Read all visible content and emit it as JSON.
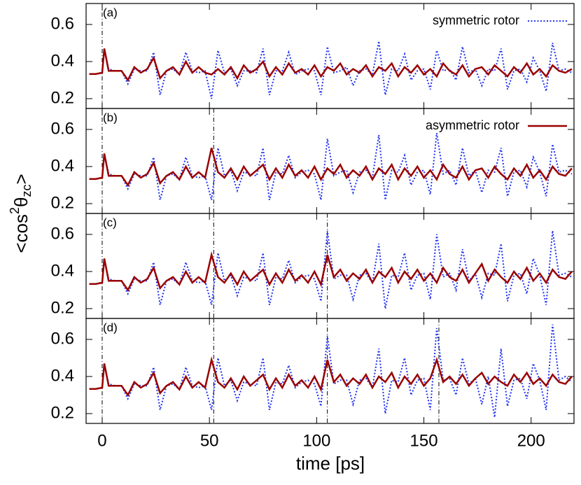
{
  "xlabel": "time [ps]",
  "ylabel": [
    "<cos",
    "2",
    "θ",
    "zc",
    ">"
  ],
  "xlim": [
    -7.5,
    220
  ],
  "xticks": [
    0,
    50,
    100,
    150,
    200
  ],
  "x": [
    -6,
    -3,
    0,
    1,
    3,
    6,
    9,
    12,
    15,
    18,
    21,
    24,
    27,
    30,
    33,
    36,
    39,
    42,
    45,
    48,
    51,
    54,
    57,
    60,
    63,
    66,
    69,
    72,
    75,
    78,
    81,
    84,
    87,
    90,
    93,
    96,
    99,
    102,
    105,
    108,
    111,
    114,
    117,
    120,
    123,
    126,
    129,
    132,
    135,
    138,
    141,
    144,
    147,
    150,
    153,
    156,
    159,
    162,
    165,
    168,
    171,
    174,
    177,
    180,
    183,
    186,
    189,
    192,
    195,
    198,
    201,
    204,
    207,
    210,
    213,
    216,
    219
  ],
  "chart_data": [
    {
      "type": "line",
      "label": "(a)",
      "ylim": [
        0.147,
        0.713
      ],
      "yticks": [
        0.2,
        0.4,
        0.6
      ],
      "vlines": [
        0
      ],
      "legend": "upper right",
      "series": [
        {
          "name": "symmetric rotor",
          "color": "#2233ee",
          "style": "dotted",
          "values": [
            0.333,
            0.333,
            0.34,
            0.47,
            0.36,
            0.35,
            0.35,
            0.28,
            0.36,
            0.35,
            0.35,
            0.45,
            0.22,
            0.35,
            0.36,
            0.33,
            0.45,
            0.35,
            0.34,
            0.35,
            0.2,
            0.46,
            0.34,
            0.36,
            0.27,
            0.35,
            0.35,
            0.34,
            0.47,
            0.22,
            0.35,
            0.35,
            0.45,
            0.33,
            0.35,
            0.36,
            0.35,
            0.22,
            0.48,
            0.34,
            0.35,
            0.37,
            0.27,
            0.35,
            0.36,
            0.33,
            0.51,
            0.22,
            0.36,
            0.35,
            0.44,
            0.3,
            0.35,
            0.36,
            0.25,
            0.46,
            0.35,
            0.36,
            0.3,
            0.48,
            0.34,
            0.36,
            0.27,
            0.36,
            0.35,
            0.47,
            0.25,
            0.35,
            0.36,
            0.29,
            0.42,
            0.35,
            0.24,
            0.5,
            0.35,
            0.36,
            0.34
          ]
        },
        {
          "color": "#990000",
          "style": "solid",
          "values": [
            0.333,
            0.333,
            0.34,
            0.47,
            0.35,
            0.35,
            0.35,
            0.3,
            0.37,
            0.34,
            0.36,
            0.42,
            0.31,
            0.35,
            0.37,
            0.33,
            0.4,
            0.34,
            0.37,
            0.34,
            0.33,
            0.36,
            0.33,
            0.37,
            0.31,
            0.38,
            0.34,
            0.36,
            0.4,
            0.32,
            0.37,
            0.33,
            0.39,
            0.34,
            0.36,
            0.33,
            0.38,
            0.32,
            0.37,
            0.35,
            0.39,
            0.33,
            0.36,
            0.34,
            0.38,
            0.32,
            0.37,
            0.35,
            0.39,
            0.32,
            0.37,
            0.34,
            0.38,
            0.33,
            0.36,
            0.32,
            0.39,
            0.35,
            0.33,
            0.38,
            0.32,
            0.36,
            0.37,
            0.33,
            0.38,
            0.35,
            0.32,
            0.37,
            0.34,
            0.39,
            0.33,
            0.36,
            0.32,
            0.38,
            0.35,
            0.34,
            0.36
          ]
        }
      ]
    },
    {
      "type": "line",
      "label": "(b)",
      "ylim": [
        0.147,
        0.713
      ],
      "yticks": [
        0.2,
        0.4,
        0.6
      ],
      "vlines": [
        0,
        52
      ],
      "legend": "upper right",
      "series": [
        {
          "color": "#2233ee",
          "style": "dotted",
          "values": [
            0.333,
            0.333,
            0.34,
            0.47,
            0.36,
            0.35,
            0.35,
            0.28,
            0.36,
            0.35,
            0.35,
            0.45,
            0.22,
            0.35,
            0.36,
            0.33,
            0.45,
            0.35,
            0.34,
            0.35,
            0.22,
            0.5,
            0.35,
            0.38,
            0.27,
            0.37,
            0.36,
            0.35,
            0.5,
            0.22,
            0.37,
            0.36,
            0.46,
            0.34,
            0.37,
            0.38,
            0.36,
            0.22,
            0.55,
            0.35,
            0.37,
            0.38,
            0.26,
            0.37,
            0.38,
            0.34,
            0.57,
            0.22,
            0.38,
            0.37,
            0.46,
            0.3,
            0.37,
            0.38,
            0.25,
            0.58,
            0.36,
            0.38,
            0.3,
            0.5,
            0.35,
            0.38,
            0.26,
            0.38,
            0.37,
            0.5,
            0.24,
            0.37,
            0.38,
            0.29,
            0.45,
            0.37,
            0.24,
            0.52,
            0.37,
            0.38,
            0.36
          ]
        },
        {
          "name": "asymmetric rotor",
          "color": "#990000",
          "style": "solid",
          "values": [
            0.333,
            0.333,
            0.34,
            0.47,
            0.35,
            0.35,
            0.35,
            0.3,
            0.37,
            0.34,
            0.36,
            0.42,
            0.31,
            0.35,
            0.37,
            0.33,
            0.4,
            0.34,
            0.37,
            0.34,
            0.5,
            0.37,
            0.34,
            0.39,
            0.33,
            0.4,
            0.35,
            0.38,
            0.41,
            0.33,
            0.39,
            0.34,
            0.41,
            0.35,
            0.38,
            0.34,
            0.4,
            0.33,
            0.39,
            0.36,
            0.41,
            0.34,
            0.38,
            0.35,
            0.4,
            0.33,
            0.39,
            0.36,
            0.41,
            0.33,
            0.39,
            0.35,
            0.4,
            0.34,
            0.38,
            0.33,
            0.41,
            0.36,
            0.34,
            0.4,
            0.33,
            0.38,
            0.39,
            0.34,
            0.4,
            0.36,
            0.33,
            0.39,
            0.35,
            0.41,
            0.34,
            0.38,
            0.33,
            0.4,
            0.36,
            0.35,
            0.39
          ]
        }
      ]
    },
    {
      "type": "line",
      "label": "(c)",
      "ylim": [
        0.147,
        0.713
      ],
      "yticks": [
        0.2,
        0.4,
        0.6
      ],
      "vlines": [
        0,
        52,
        105
      ],
      "series": [
        {
          "color": "#2233ee",
          "style": "dotted",
          "values": [
            0.333,
            0.333,
            0.34,
            0.47,
            0.36,
            0.35,
            0.35,
            0.28,
            0.36,
            0.35,
            0.35,
            0.45,
            0.22,
            0.35,
            0.36,
            0.33,
            0.45,
            0.35,
            0.34,
            0.35,
            0.22,
            0.5,
            0.35,
            0.38,
            0.27,
            0.37,
            0.36,
            0.35,
            0.5,
            0.22,
            0.37,
            0.36,
            0.46,
            0.34,
            0.37,
            0.38,
            0.36,
            0.24,
            0.62,
            0.36,
            0.38,
            0.38,
            0.25,
            0.38,
            0.39,
            0.34,
            0.55,
            0.2,
            0.38,
            0.37,
            0.5,
            0.3,
            0.38,
            0.39,
            0.25,
            0.6,
            0.37,
            0.39,
            0.3,
            0.52,
            0.35,
            0.39,
            0.26,
            0.39,
            0.38,
            0.55,
            0.24,
            0.38,
            0.39,
            0.28,
            0.47,
            0.38,
            0.22,
            0.62,
            0.38,
            0.39,
            0.37
          ]
        },
        {
          "color": "#990000",
          "style": "solid",
          "values": [
            0.333,
            0.333,
            0.34,
            0.47,
            0.35,
            0.35,
            0.35,
            0.3,
            0.37,
            0.34,
            0.36,
            0.42,
            0.31,
            0.35,
            0.37,
            0.33,
            0.4,
            0.34,
            0.37,
            0.34,
            0.49,
            0.37,
            0.34,
            0.39,
            0.33,
            0.4,
            0.35,
            0.38,
            0.41,
            0.33,
            0.39,
            0.34,
            0.41,
            0.35,
            0.38,
            0.34,
            0.4,
            0.33,
            0.49,
            0.37,
            0.41,
            0.35,
            0.39,
            0.36,
            0.41,
            0.34,
            0.4,
            0.37,
            0.42,
            0.34,
            0.4,
            0.36,
            0.41,
            0.35,
            0.39,
            0.34,
            0.42,
            0.37,
            0.35,
            0.41,
            0.34,
            0.39,
            0.44,
            0.35,
            0.41,
            0.37,
            0.34,
            0.4,
            0.36,
            0.42,
            0.35,
            0.39,
            0.34,
            0.41,
            0.37,
            0.36,
            0.4
          ]
        }
      ]
    },
    {
      "type": "line",
      "label": "(d)",
      "ylim": [
        0.147,
        0.713
      ],
      "yticks": [
        0.2,
        0.4,
        0.6
      ],
      "vlines": [
        0,
        52,
        105,
        157
      ],
      "series": [
        {
          "color": "#2233ee",
          "style": "dotted",
          "values": [
            0.333,
            0.333,
            0.34,
            0.47,
            0.36,
            0.35,
            0.35,
            0.28,
            0.36,
            0.35,
            0.35,
            0.45,
            0.22,
            0.35,
            0.36,
            0.33,
            0.45,
            0.35,
            0.34,
            0.35,
            0.22,
            0.5,
            0.35,
            0.38,
            0.27,
            0.37,
            0.36,
            0.35,
            0.5,
            0.22,
            0.37,
            0.36,
            0.46,
            0.34,
            0.37,
            0.38,
            0.36,
            0.24,
            0.62,
            0.36,
            0.38,
            0.38,
            0.25,
            0.38,
            0.39,
            0.34,
            0.55,
            0.2,
            0.38,
            0.37,
            0.5,
            0.3,
            0.38,
            0.39,
            0.22,
            0.66,
            0.38,
            0.39,
            0.3,
            0.5,
            0.36,
            0.39,
            0.25,
            0.4,
            0.18,
            0.55,
            0.24,
            0.38,
            0.39,
            0.28,
            0.47,
            0.38,
            0.22,
            0.68,
            0.38,
            0.4,
            0.37
          ]
        },
        {
          "color": "#990000",
          "style": "solid",
          "values": [
            0.333,
            0.333,
            0.34,
            0.47,
            0.35,
            0.35,
            0.35,
            0.3,
            0.37,
            0.34,
            0.36,
            0.42,
            0.31,
            0.35,
            0.37,
            0.33,
            0.4,
            0.34,
            0.37,
            0.34,
            0.49,
            0.37,
            0.34,
            0.39,
            0.33,
            0.4,
            0.35,
            0.38,
            0.41,
            0.33,
            0.39,
            0.34,
            0.41,
            0.35,
            0.38,
            0.34,
            0.4,
            0.33,
            0.49,
            0.37,
            0.41,
            0.35,
            0.39,
            0.36,
            0.41,
            0.34,
            0.4,
            0.37,
            0.42,
            0.34,
            0.4,
            0.36,
            0.41,
            0.35,
            0.39,
            0.49,
            0.37,
            0.4,
            0.36,
            0.41,
            0.35,
            0.39,
            0.42,
            0.36,
            0.4,
            0.37,
            0.35,
            0.41,
            0.37,
            0.42,
            0.36,
            0.39,
            0.35,
            0.41,
            0.37,
            0.36,
            0.4
          ]
        }
      ]
    }
  ]
}
